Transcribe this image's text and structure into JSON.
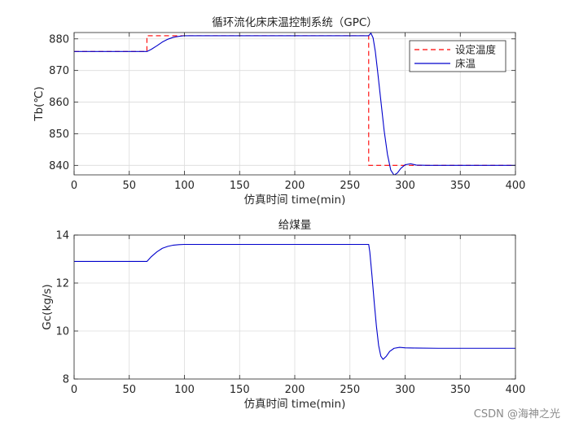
{
  "chart_data": [
    {
      "type": "line",
      "title": "循环流化床床温控制系统（GPC）",
      "xlabel": "仿真时间 time(min)",
      "ylabel": "Tb(℃)",
      "xlim": [
        0,
        400
      ],
      "ylim": [
        837,
        882
      ],
      "xticks": [
        0,
        50,
        100,
        150,
        200,
        250,
        300,
        350,
        400
      ],
      "yticks": [
        840,
        850,
        860,
        870,
        880
      ],
      "grid": true,
      "legend_position": "top-right",
      "series": [
        {
          "name": "设定温度",
          "color": "#ff0000",
          "style": "dashed",
          "x": [
            0,
            66,
            66,
            267,
            267,
            400
          ],
          "y": [
            876,
            876,
            881,
            881,
            840,
            840
          ]
        },
        {
          "name": "床温",
          "color": "#0000cc",
          "style": "solid",
          "x": [
            0,
            66,
            70,
            75,
            80,
            85,
            90,
            95,
            100,
            110,
            120,
            150,
            200,
            250,
            267,
            269,
            271,
            273,
            275,
            278,
            281,
            284,
            287,
            290,
            293,
            296,
            300,
            305,
            310,
            320,
            340,
            400
          ],
          "y": [
            876,
            876,
            876.7,
            877.8,
            879,
            879.9,
            880.5,
            880.8,
            881,
            881,
            881,
            881,
            881,
            881,
            881,
            881.8,
            880.3,
            876,
            870,
            860.5,
            851,
            843.5,
            838.5,
            836.9,
            837.6,
            839,
            840.2,
            840.5,
            840.1,
            840,
            840,
            840
          ]
        }
      ]
    },
    {
      "type": "line",
      "title": "给煤量",
      "xlabel": "仿真时间 time(min)",
      "ylabel": "Gc(kg/s)",
      "xlim": [
        0,
        400
      ],
      "ylim": [
        8,
        14
      ],
      "xticks": [
        0,
        50,
        100,
        150,
        200,
        250,
        300,
        350,
        400
      ],
      "yticks": [
        8,
        10,
        12,
        14
      ],
      "grid": true,
      "series": [
        {
          "color": "#0000cc",
          "style": "solid",
          "x": [
            0,
            66,
            70,
            75,
            80,
            85,
            90,
            95,
            100,
            110,
            150,
            200,
            250,
            267,
            268,
            270,
            272,
            274,
            276,
            278,
            280,
            283,
            286,
            290,
            295,
            300,
            310,
            330,
            400
          ],
          "y": [
            12.9,
            12.9,
            13.1,
            13.3,
            13.45,
            13.53,
            13.58,
            13.6,
            13.61,
            13.61,
            13.61,
            13.61,
            13.61,
            13.61,
            13.3,
            12.3,
            11.2,
            10.2,
            9.4,
            8.95,
            8.82,
            8.95,
            9.15,
            9.28,
            9.32,
            9.3,
            9.29,
            9.28,
            9.28
          ]
        }
      ]
    }
  ],
  "watermark": "CSDN @海神之光"
}
